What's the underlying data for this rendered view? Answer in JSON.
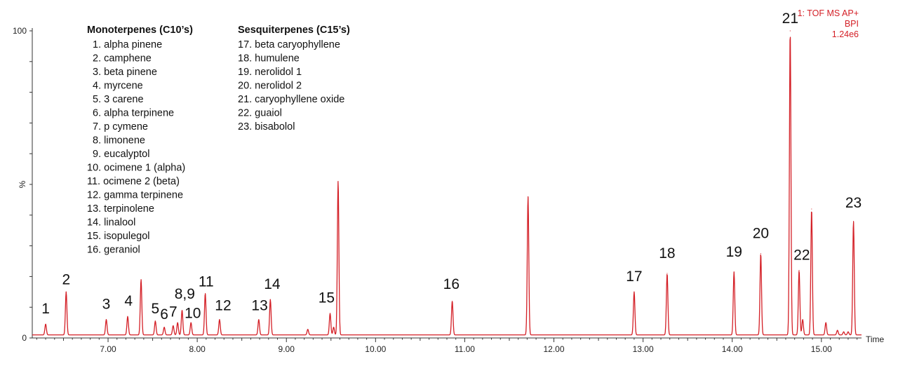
{
  "chart_data": {
    "type": "line",
    "title": "",
    "xlabel": "Time",
    "ylabel": "%",
    "xlim": [
      6.15,
      15.45
    ],
    "ylim": [
      0,
      100
    ],
    "x_ticks": [
      7.0,
      8.0,
      9.0,
      10.0,
      11.0,
      12.0,
      13.0,
      14.0,
      15.0
    ],
    "x_tick_labels": [
      "7.00",
      "8.00",
      "9.00",
      "10.00",
      "11.00",
      "12.00",
      "13.00",
      "14.00",
      "15.00"
    ],
    "y_tick_labels": [
      "100",
      "%",
      "0"
    ],
    "baseline": 1.0,
    "line_color": "#d42027",
    "info": [
      "1: TOF MS AP+",
      "BPI",
      "1.24e6"
    ],
    "peaks": [
      {
        "x": 6.3,
        "y": 4.5
      },
      {
        "x": 6.53,
        "y": 15.0
      },
      {
        "x": 6.98,
        "y": 6.0
      },
      {
        "x": 7.22,
        "y": 7.0
      },
      {
        "x": 7.37,
        "y": 19.0
      },
      {
        "x": 7.53,
        "y": 5.5
      },
      {
        "x": 7.63,
        "y": 3.5
      },
      {
        "x": 7.73,
        "y": 4.0
      },
      {
        "x": 7.78,
        "y": 5.0
      },
      {
        "x": 7.83,
        "y": 9.0
      },
      {
        "x": 7.93,
        "y": 5.0
      },
      {
        "x": 8.09,
        "y": 14.5
      },
      {
        "x": 8.25,
        "y": 6.0
      },
      {
        "x": 8.69,
        "y": 6.0
      },
      {
        "x": 8.82,
        "y": 12.5
      },
      {
        "x": 9.24,
        "y": 2.8
      },
      {
        "x": 9.49,
        "y": 8.0
      },
      {
        "x": 9.53,
        "y": 3.5
      },
      {
        "x": 9.58,
        "y": 51.0
      },
      {
        "x": 10.86,
        "y": 12.0
      },
      {
        "x": 11.71,
        "y": 46.0
      },
      {
        "x": 12.9,
        "y": 15.0
      },
      {
        "x": 13.27,
        "y": 21.0
      },
      {
        "x": 14.02,
        "y": 21.5
      },
      {
        "x": 14.32,
        "y": 27.5
      },
      {
        "x": 14.65,
        "y": 100.0
      },
      {
        "x": 14.75,
        "y": 22.0
      },
      {
        "x": 14.79,
        "y": 6.0
      },
      {
        "x": 14.89,
        "y": 42.0
      },
      {
        "x": 15.05,
        "y": 5.0
      },
      {
        "x": 15.18,
        "y": 2.5
      },
      {
        "x": 15.25,
        "y": 2.0
      },
      {
        "x": 15.3,
        "y": 2.0
      },
      {
        "x": 15.36,
        "y": 38.0
      }
    ],
    "annotations": [
      {
        "text": "1",
        "x": 6.3,
        "y": 8.0
      },
      {
        "text": "2",
        "x": 6.53,
        "y": 17.5
      },
      {
        "text": "3",
        "x": 6.98,
        "y": 9.5
      },
      {
        "text": "4",
        "x": 7.23,
        "y": 10.5
      },
      {
        "text": "5",
        "x": 7.53,
        "y": 8.0
      },
      {
        "text": "6",
        "x": 7.63,
        "y": 6.2
      },
      {
        "text": "7",
        "x": 7.73,
        "y": 7.0
      },
      {
        "text": "8,9",
        "x": 7.86,
        "y": 12.8
      },
      {
        "text": "10",
        "x": 7.95,
        "y": 6.5
      },
      {
        "text": "11",
        "x": 8.1,
        "y": 16.8
      },
      {
        "text": "12",
        "x": 8.29,
        "y": 9.0
      },
      {
        "text": "13",
        "x": 8.7,
        "y": 9.0
      },
      {
        "text": "14",
        "x": 8.84,
        "y": 16.0
      },
      {
        "text": "15",
        "x": 9.45,
        "y": 11.5
      },
      {
        "text": "16",
        "x": 10.85,
        "y": 16.0
      },
      {
        "text": "17",
        "x": 12.9,
        "y": 18.5
      },
      {
        "text": "18",
        "x": 13.27,
        "y": 26.0
      },
      {
        "text": "19",
        "x": 14.02,
        "y": 26.5
      },
      {
        "text": "20",
        "x": 14.32,
        "y": 32.5
      },
      {
        "text": "21",
        "x": 14.65,
        "y": 102.5
      },
      {
        "text": "22",
        "x": 14.78,
        "y": 25.5
      },
      {
        "text": "23",
        "x": 15.36,
        "y": 42.5
      }
    ],
    "legend": [
      {
        "header": "Monoterpenes (C10’s)",
        "items": [
          "1. alpha pinene",
          "2. camphene",
          "3. beta pinene",
          "4. myrcene",
          "5. 3 carene",
          "6. alpha terpinene",
          "7. p cymene",
          "8. limonene",
          "9. eucalyptol",
          "10. ocimene 1 (alpha)",
          "11. ocimene 2 (beta)",
          "12. gamma terpinene",
          "13. terpinolene",
          "14. linalool",
          "15. isopulegol",
          "16. geraniol"
        ]
      },
      {
        "header": "Sesquiterpenes (C15’s)",
        "items": [
          "17. beta caryophyllene",
          "18. humulene",
          "19. nerolidol 1",
          "20. nerolidol 2",
          "21. caryophyllene oxide",
          "22. guaiol",
          "23. bisabolol"
        ]
      }
    ]
  }
}
